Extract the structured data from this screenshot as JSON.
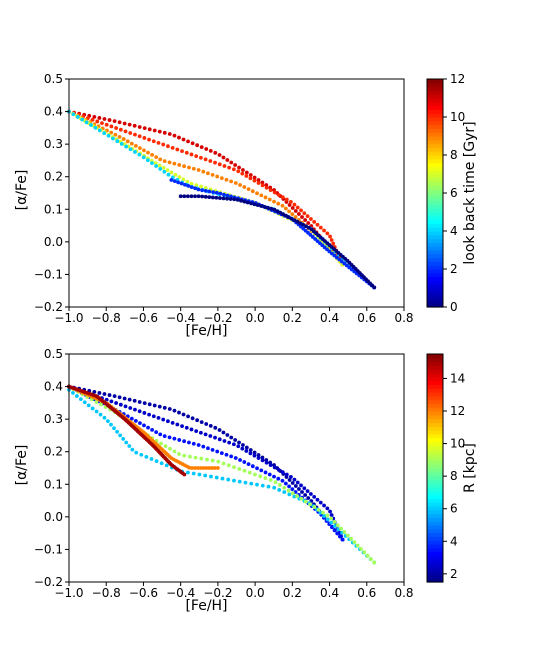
{
  "chart_data": [
    {
      "type": "scatter",
      "xlabel": "[Fe/H]",
      "ylabel": "[α/Fe]",
      "xlim": [
        -1.0,
        0.8
      ],
      "ylim": [
        -0.2,
        0.5
      ],
      "xticks": [
        "−1.0",
        "−0.8",
        "−0.6",
        "−0.4",
        "−0.2",
        "0.0",
        "0.2",
        "0.4",
        "0.6",
        "0.8"
      ],
      "yticks": [
        "−0.2",
        "−0.1",
        "0.0",
        "0.1",
        "0.2",
        "0.3",
        "0.4",
        "0.5"
      ],
      "colormap": "jet",
      "colorbar": {
        "label": "look back time  [Gyr]",
        "min": 0,
        "max": 12,
        "ticks": [
          "0",
          "2",
          "4",
          "6",
          "8",
          "10",
          "12"
        ]
      },
      "grid": false,
      "series": [
        {
          "x": [
            -1.0,
            -0.75,
            -0.45,
            -0.2,
            0.1,
            0.3,
            0.47
          ],
          "y": [
            0.4,
            0.37,
            0.33,
            0.27,
            0.16,
            0.05,
            -0.07
          ],
          "color_value": 11
        },
        {
          "x": [
            -1.0,
            -0.7,
            -0.4,
            -0.1,
            0.2,
            0.4,
            0.47
          ],
          "y": [
            0.4,
            0.34,
            0.28,
            0.22,
            0.12,
            0.02,
            -0.07
          ],
          "color_value": 10
        },
        {
          "x": [
            -1.0,
            -0.72,
            -0.5,
            -0.3,
            -0.1,
            0.15,
            0.35,
            0.47
          ],
          "y": [
            0.4,
            0.32,
            0.25,
            0.22,
            0.18,
            0.11,
            0.01,
            -0.07
          ],
          "color_value": 9
        },
        {
          "x": [
            -1.0,
            -0.7,
            -0.5,
            -0.35,
            0.0,
            0.3,
            0.47
          ],
          "y": [
            0.4,
            0.3,
            0.23,
            0.18,
            0.12,
            0.04,
            -0.07
          ],
          "color_value": 7
        },
        {
          "x": [
            -1.0,
            -0.6,
            -0.45,
            -0.35,
            0.1,
            0.3,
            0.64
          ],
          "y": [
            0.4,
            0.26,
            0.2,
            0.17,
            0.1,
            0.04,
            -0.14
          ],
          "color_value": 4
        },
        {
          "x": [
            -0.45,
            -0.3,
            -0.2,
            0.0,
            0.2,
            0.4,
            0.64
          ],
          "y": [
            0.19,
            0.16,
            0.15,
            0.12,
            0.07,
            -0.03,
            -0.14
          ],
          "color_value": 2
        },
        {
          "x": [
            -0.4,
            -0.3,
            -0.1,
            0.1,
            0.3,
            0.5,
            0.64
          ],
          "y": [
            0.14,
            0.14,
            0.13,
            0.1,
            0.04,
            -0.06,
            -0.14
          ],
          "color_value": 0
        }
      ]
    },
    {
      "type": "scatter",
      "xlabel": "[Fe/H]",
      "ylabel": "[α/Fe]",
      "xlim": [
        -1.0,
        0.8
      ],
      "ylim": [
        -0.2,
        0.5
      ],
      "xticks": [
        "−1.0",
        "−0.8",
        "−0.6",
        "−0.4",
        "−0.2",
        "0.0",
        "0.2",
        "0.4",
        "0.6",
        "0.8"
      ],
      "yticks": [
        "−0.2",
        "−0.1",
        "0.0",
        "0.1",
        "0.2",
        "0.3",
        "0.4",
        "0.5"
      ],
      "colormap": "jet",
      "colorbar": {
        "label": "R  [kpc]",
        "min": 1.5,
        "max": 15.5,
        "ticks": [
          "2",
          "4",
          "6",
          "8",
          "10",
          "12",
          "14"
        ]
      },
      "grid": false,
      "series": [
        {
          "x": [
            -1.0,
            -0.75,
            -0.45,
            -0.2,
            0.1,
            0.3,
            0.47
          ],
          "y": [
            0.4,
            0.37,
            0.33,
            0.27,
            0.16,
            0.05,
            -0.07
          ],
          "color_value": 2
        },
        {
          "x": [
            -1.0,
            -0.7,
            -0.4,
            -0.1,
            0.2,
            0.4,
            0.47
          ],
          "y": [
            0.4,
            0.34,
            0.28,
            0.22,
            0.12,
            0.02,
            -0.07
          ],
          "color_value": 2.5
        },
        {
          "x": [
            -1.0,
            -0.72,
            -0.5,
            -0.3,
            -0.1,
            0.15,
            0.35,
            0.47
          ],
          "y": [
            0.4,
            0.32,
            0.25,
            0.22,
            0.18,
            0.11,
            0.01,
            -0.07
          ],
          "color_value": 3.5
        },
        {
          "x": [
            -1.0,
            -0.8,
            -0.65,
            -0.4,
            -0.2,
            0.1,
            0.3,
            0.64
          ],
          "y": [
            0.39,
            0.3,
            0.2,
            0.14,
            0.12,
            0.09,
            0.04,
            -0.14
          ],
          "color_value": 6
        },
        {
          "x": [
            -1.0,
            -0.75,
            -0.55,
            -0.4,
            -0.2,
            0.1,
            0.4,
            0.64
          ],
          "y": [
            0.4,
            0.32,
            0.24,
            0.19,
            0.17,
            0.11,
            0.0,
            -0.14
          ],
          "color_value": 9
        },
        {
          "x": [
            -1.0,
            -0.8,
            -0.6,
            -0.45,
            -0.35,
            -0.2
          ],
          "y": [
            0.4,
            0.35,
            0.26,
            0.18,
            0.15,
            0.15
          ],
          "color_value": 12
        },
        {
          "x": [
            -1.0,
            -0.85,
            -0.7,
            -0.55,
            -0.45,
            -0.38
          ],
          "y": [
            0.4,
            0.37,
            0.3,
            0.22,
            0.16,
            0.13
          ],
          "color_value": 15
        }
      ]
    }
  ]
}
